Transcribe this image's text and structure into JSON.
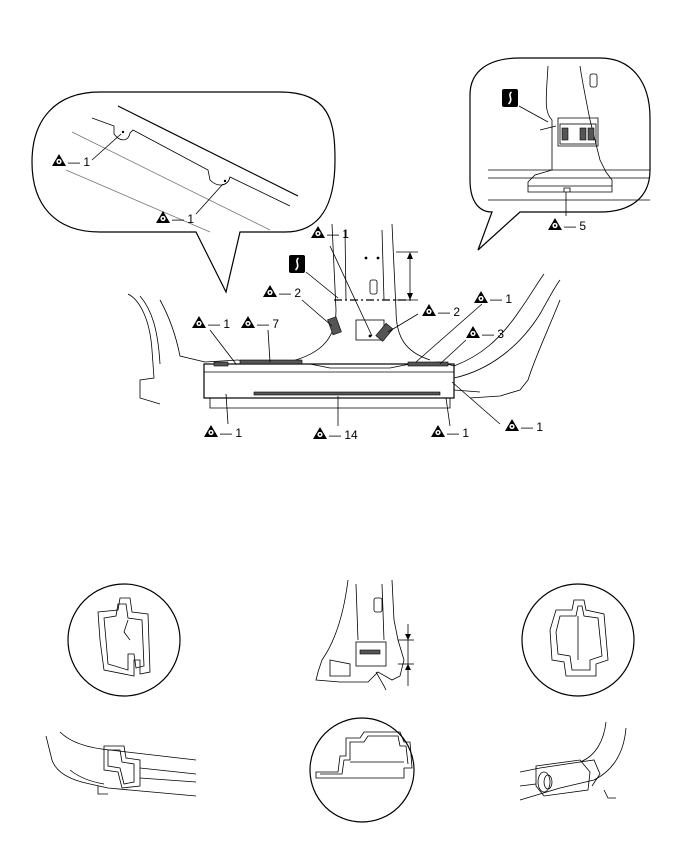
{
  "callouts": [
    {
      "id": "c1",
      "text": "— 1"
    },
    {
      "id": "c2",
      "text": "— 1"
    },
    {
      "id": "c3",
      "text": "— 5"
    },
    {
      "id": "c4",
      "text": "— 1"
    },
    {
      "id": "c5",
      "text": "— 2"
    },
    {
      "id": "c6",
      "text": "— 2"
    },
    {
      "id": "c7",
      "text": "— 1"
    },
    {
      "id": "c8",
      "text": "— 1"
    },
    {
      "id": "c9",
      "text": "— 7"
    },
    {
      "id": "c10",
      "text": "— 3"
    },
    {
      "id": "c11",
      "text": "— 1"
    },
    {
      "id": "c12",
      "text": "— 14"
    },
    {
      "id": "c13",
      "text": "— 1"
    },
    {
      "id": "c14",
      "text": "— 1"
    }
  ],
  "icons": {
    "weld_symbol": "spot-weld-triangle-icon",
    "cut_symbol": "saw-cut-icon"
  },
  "colors": {
    "line": "#000000",
    "weld_fill": "#555555"
  }
}
